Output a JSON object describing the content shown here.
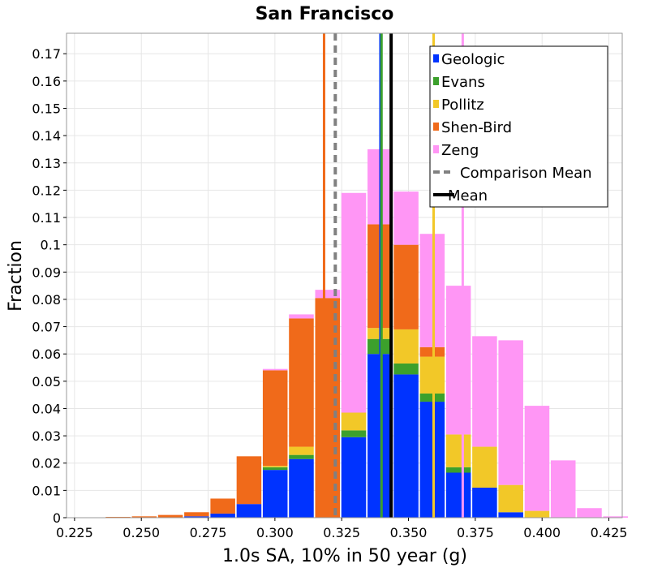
{
  "chart_data": {
    "type": "bar",
    "stacked": true,
    "title": "San Francisco",
    "xlabel": "1.0s SA, 10% in 50 year (g)",
    "ylabel": "Fraction",
    "xlim": [
      0.222,
      0.43
    ],
    "ylim": [
      0,
      0.1775
    ],
    "grid": true,
    "legend_position": "top-right",
    "bin_width": 0.01,
    "x_ticks": [
      "0.225",
      "0.250",
      "0.275",
      "0.300",
      "0.325",
      "0.350",
      "0.375",
      "0.400",
      "0.425"
    ],
    "y_ticks": [
      "0",
      "0.01",
      "0.02",
      "0.03",
      "0.04",
      "0.05",
      "0.06",
      "0.07",
      "0.08",
      "0.09",
      "0.1",
      "0.11",
      "0.12",
      "0.13",
      "0.14",
      "0.15",
      "0.16",
      "0.17"
    ],
    "x": [
      0.2315,
      0.2413,
      0.2511,
      0.2609,
      0.2707,
      0.2805,
      0.2903,
      0.3001,
      0.3099,
      0.3197,
      0.3295,
      0.3393,
      0.3491,
      0.3589,
      0.3687,
      0.3785,
      0.3883,
      0.3981,
      0.4079,
      0.4177,
      0.4275
    ],
    "series": [
      {
        "name": "Geologic",
        "color": "#0033ff",
        "values": [
          0,
          0,
          0,
          0,
          0.0005,
          0.0015,
          0.005,
          0.0175,
          0.0215,
          0,
          0.0295,
          0.06,
          0.0525,
          0.0425,
          0.0165,
          0.011,
          0.002,
          0,
          0,
          0,
          0
        ]
      },
      {
        "name": "Evans",
        "color": "#3ca02c",
        "values": [
          0,
          0,
          0,
          0,
          0,
          0,
          0,
          0.001,
          0.0015,
          0,
          0.0025,
          0.0055,
          0.004,
          0.003,
          0.002,
          0,
          0,
          0,
          0,
          0,
          0
        ]
      },
      {
        "name": "Pollitz",
        "color": "#f2c828",
        "values": [
          0,
          0,
          0,
          0,
          0,
          0,
          0,
          0.0005,
          0.003,
          0,
          0.0065,
          0.004,
          0.0125,
          0.0135,
          0.012,
          0.015,
          0.01,
          0.0025,
          0,
          0,
          0
        ]
      },
      {
        "name": "Shen-Bird",
        "color": "#f06a1a",
        "values": [
          0,
          0.0003,
          0.0005,
          0.001,
          0.0015,
          0.0055,
          0.0175,
          0.035,
          0.047,
          0.0805,
          0,
          0.038,
          0.031,
          0.0035,
          0,
          0,
          0,
          0,
          0,
          0,
          0
        ]
      },
      {
        "name": "Zeng",
        "color": "#ff96f5",
        "values": [
          0,
          0,
          0,
          0,
          0,
          0,
          0,
          0.0005,
          0.0015,
          0.003,
          0.0805,
          0.0275,
          0.0195,
          0.0415,
          0.0545,
          0.0405,
          0.053,
          0.0385,
          0.021,
          0.0035,
          0.0005
        ]
      }
    ],
    "vertical_lines": [
      {
        "series": "Geologic",
        "x": 0.3395,
        "color": "#0033ff",
        "style": "solid"
      },
      {
        "series": "Evans",
        "x": 0.3399,
        "color": "#3ca02c",
        "style": "solid"
      },
      {
        "series": "Pollitz",
        "x": 0.3594,
        "color": "#f2c828",
        "style": "solid"
      },
      {
        "series": "Shen-Bird",
        "x": 0.3184,
        "color": "#f06a1a",
        "style": "solid"
      },
      {
        "series": "Zeng",
        "x": 0.3703,
        "color": "#ff96f5",
        "style": "solid"
      },
      {
        "series": "Comparison Mean",
        "x": 0.3226,
        "color": "#808080",
        "style": "dashed"
      },
      {
        "series": "Mean",
        "x": 0.3435,
        "color": "#000000",
        "style": "solid"
      }
    ],
    "legend": [
      {
        "label": "Geologic",
        "color": "#0033ff",
        "marker": "square"
      },
      {
        "label": "Evans",
        "color": "#3ca02c",
        "marker": "square"
      },
      {
        "label": "Pollitz",
        "color": "#f2c828",
        "marker": "square"
      },
      {
        "label": "Shen-Bird",
        "color": "#f06a1a",
        "marker": "square"
      },
      {
        "label": "Zeng",
        "color": "#ff96f5",
        "marker": "square"
      },
      {
        "label": "Comparison Mean",
        "color": "#808080",
        "marker": "dashed-line"
      },
      {
        "label": "Mean",
        "color": "#000000",
        "marker": "line"
      }
    ]
  }
}
